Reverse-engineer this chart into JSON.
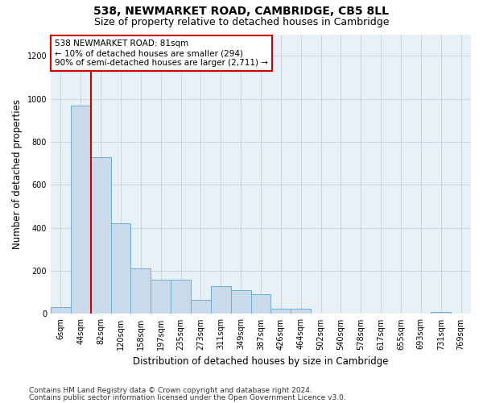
{
  "title": "538, NEWMARKET ROAD, CAMBRIDGE, CB5 8LL",
  "subtitle": "Size of property relative to detached houses in Cambridge",
  "xlabel": "Distribution of detached houses by size in Cambridge",
  "ylabel": "Number of detached properties",
  "bar_values": [
    30,
    970,
    730,
    420,
    210,
    160,
    160,
    65,
    130,
    110,
    90,
    25,
    25,
    0,
    0,
    0,
    0,
    0,
    0,
    10,
    0
  ],
  "bar_labels": [
    "6sqm",
    "44sqm",
    "82sqm",
    "120sqm",
    "158sqm",
    "197sqm",
    "235sqm",
    "273sqm",
    "311sqm",
    "349sqm",
    "387sqm",
    "426sqm",
    "464sqm",
    "502sqm",
    "540sqm",
    "578sqm",
    "617sqm",
    "655sqm",
    "693sqm",
    "731sqm",
    "769sqm"
  ],
  "bar_color": "#c9daea",
  "bar_edge_color": "#6aaed6",
  "vline_x_index": 1.5,
  "vline_color": "#cc0000",
  "annotation_text": "538 NEWMARKET ROAD: 81sqm\n← 10% of detached houses are smaller (294)\n90% of semi-detached houses are larger (2,711) →",
  "annotation_box_color": "#cc0000",
  "ylim": [
    0,
    1300
  ],
  "yticks": [
    0,
    200,
    400,
    600,
    800,
    1000,
    1200
  ],
  "footer1": "Contains HM Land Registry data © Crown copyright and database right 2024.",
  "footer2": "Contains public sector information licensed under the Open Government Licence v3.0.",
  "bg_color": "#ffffff",
  "plot_bg_color": "#e8f0f8",
  "grid_color": "#c0ccd8",
  "title_fontsize": 10,
  "subtitle_fontsize": 9,
  "axis_label_fontsize": 8.5,
  "tick_fontsize": 7,
  "footer_fontsize": 6.5
}
